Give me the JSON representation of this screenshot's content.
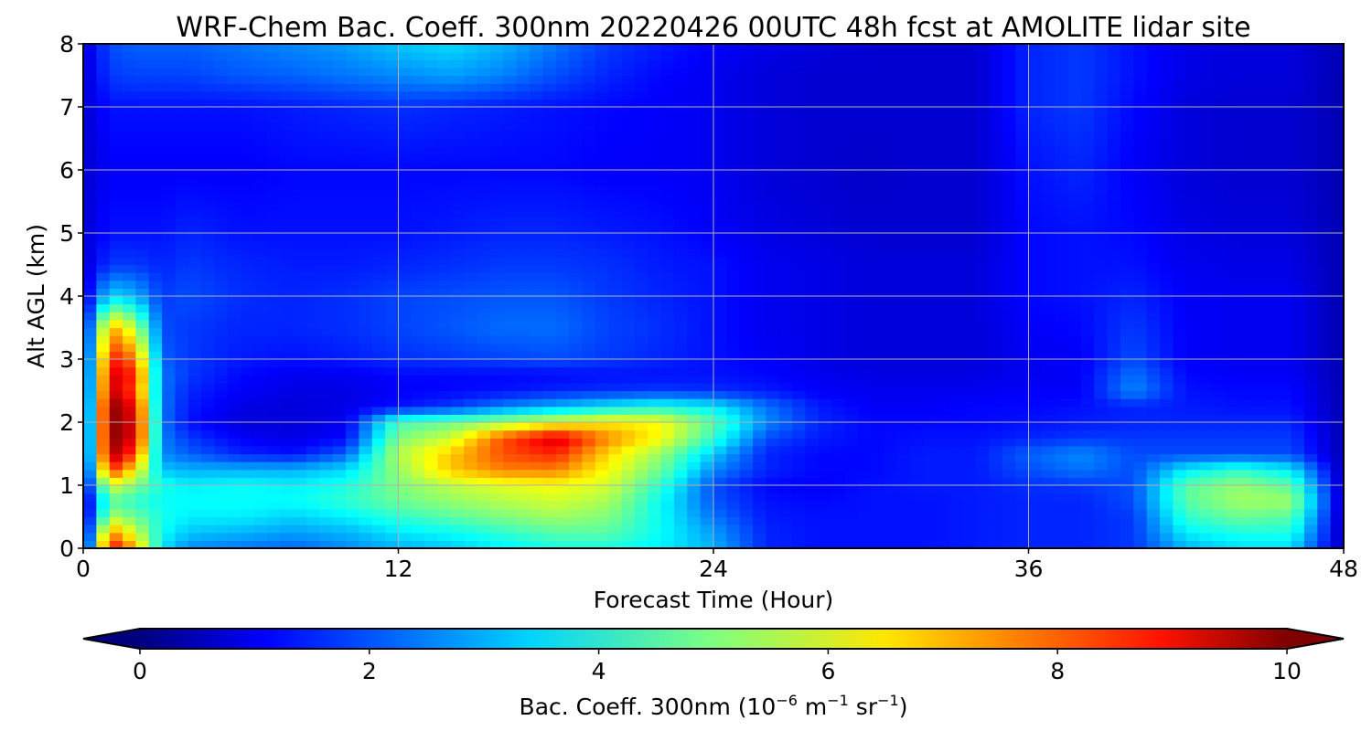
{
  "chart_data": {
    "type": "heatmap",
    "title": "WRF-Chem Bac. Coeff. 300nm  20220426 00UTC 48h fcst at AMOLITE lidar site",
    "xlabel": "Forecast Time (Hour)",
    "ylabel": "Alt AGL (km)",
    "xlim": [
      0,
      48
    ],
    "ylim": [
      0,
      8
    ],
    "x_ticks": [
      "0",
      "12",
      "24",
      "36",
      "48"
    ],
    "y_ticks": [
      "0",
      "1",
      "2",
      "3",
      "4",
      "5",
      "6",
      "7",
      "8"
    ],
    "grid": true,
    "colormap": "jet",
    "colorbar": {
      "orientation": "horizontal",
      "placement": "bottom",
      "extend": "both",
      "range": [
        0,
        10
      ],
      "ticks": [
        "0",
        "2",
        "4",
        "6",
        "8",
        "10"
      ],
      "label_main": "Bac. Coeff. 300nm  (10",
      "label_exp1": "−6",
      "label_mid": " m",
      "label_exp2": "−1",
      "label_mid2": " sr",
      "label_exp3": "−1",
      "label_end": ")"
    },
    "x_hours": [
      0,
      1,
      2,
      3,
      4,
      6,
      8,
      10,
      12,
      14,
      16,
      18,
      20,
      22,
      24,
      26,
      28,
      30,
      32,
      34,
      36,
      38,
      40,
      42,
      44,
      46,
      48
    ],
    "z_km": [
      0,
      0.25,
      0.5,
      0.75,
      1,
      1.25,
      1.5,
      1.75,
      2,
      2.25,
      2.5,
      2.75,
      3,
      3.5,
      4,
      4.5,
      5,
      6,
      7,
      7.5,
      8
    ],
    "values": [
      [
        0.5,
        9.0,
        7.0,
        3.5,
        2.6,
        2.4,
        2.2,
        2.6,
        3.0,
        3.2,
        3.6,
        4.0,
        4.0,
        3.6,
        3.0,
        1.6,
        1.4,
        1.4,
        1.4,
        1.5,
        1.6,
        1.6,
        1.8,
        3.0,
        3.4,
        3.4,
        0.5
      ],
      [
        0.5,
        7.5,
        5.8,
        3.8,
        3.2,
        3.0,
        2.8,
        3.0,
        3.5,
        3.8,
        4.2,
        4.6,
        4.6,
        3.8,
        2.8,
        1.6,
        1.4,
        1.4,
        1.4,
        1.5,
        1.6,
        1.6,
        1.8,
        3.6,
        4.0,
        4.0,
        0.5
      ],
      [
        0.5,
        5.5,
        4.8,
        4.0,
        3.6,
        3.6,
        3.3,
        3.6,
        4.2,
        4.6,
        5.0,
        5.3,
        5.0,
        3.8,
        2.4,
        1.5,
        1.4,
        1.4,
        1.4,
        1.5,
        1.6,
        1.6,
        1.8,
        4.2,
        4.8,
        4.6,
        0.5
      ],
      [
        0.5,
        4.6,
        4.2,
        3.8,
        3.8,
        3.8,
        3.8,
        4.2,
        4.8,
        5.2,
        5.5,
        5.8,
        5.4,
        3.8,
        2.1,
        1.4,
        1.3,
        1.4,
        1.4,
        1.5,
        1.6,
        1.6,
        2.0,
        4.6,
        5.3,
        5.3,
        0.5
      ],
      [
        0.8,
        6.0,
        5.0,
        4.0,
        3.6,
        3.8,
        3.6,
        4.0,
        5.0,
        5.6,
        6.0,
        6.2,
        5.8,
        4.2,
        2.0,
        1.3,
        1.2,
        1.4,
        1.5,
        1.5,
        1.7,
        1.8,
        2.0,
        4.6,
        5.2,
        4.6,
        0.5
      ],
      [
        0.8,
        8.4,
        6.4,
        3.2,
        3.0,
        3.0,
        3.0,
        3.4,
        5.2,
        6.8,
        7.5,
        7.5,
        6.2,
        4.8,
        2.6,
        1.6,
        1.3,
        1.3,
        1.5,
        1.5,
        2.0,
        2.4,
        2.0,
        3.6,
        4.2,
        3.6,
        0.5
      ],
      [
        0.8,
        9.8,
        8.0,
        2.6,
        2.2,
        1.6,
        1.4,
        2.2,
        5.5,
        6.8,
        8.0,
        8.4,
        6.6,
        5.2,
        3.2,
        1.6,
        1.3,
        1.3,
        1.5,
        1.5,
        2.2,
        2.6,
        2.0,
        2.0,
        2.0,
        2.0,
        0.5
      ],
      [
        0.8,
        10.0,
        9.0,
        2.5,
        1.8,
        1.2,
        1.0,
        1.3,
        5.0,
        5.8,
        8.0,
        9.2,
        7.4,
        6.2,
        4.2,
        2.0,
        1.5,
        1.3,
        1.4,
        1.4,
        1.6,
        1.8,
        1.8,
        1.8,
        1.8,
        1.8,
        0.5
      ],
      [
        0.8,
        10.0,
        9.0,
        2.4,
        1.4,
        0.9,
        0.9,
        1.1,
        4.4,
        4.8,
        5.3,
        6.0,
        6.4,
        6.2,
        4.6,
        2.6,
        1.6,
        1.3,
        1.3,
        1.3,
        1.4,
        1.5,
        1.6,
        1.6,
        1.6,
        1.6,
        0.5
      ],
      [
        0.8,
        10.0,
        8.8,
        2.4,
        1.5,
        1.0,
        0.9,
        1.0,
        1.4,
        1.8,
        2.5,
        3.0,
        3.6,
        4.0,
        3.6,
        2.4,
        1.5,
        1.2,
        1.2,
        1.3,
        1.3,
        1.4,
        1.6,
        1.5,
        1.4,
        1.4,
        0.5
      ],
      [
        0.8,
        9.4,
        8.0,
        2.4,
        1.6,
        1.2,
        1.0,
        1.0,
        1.2,
        1.3,
        1.4,
        1.6,
        1.7,
        1.8,
        1.7,
        1.5,
        1.2,
        1.1,
        1.1,
        1.1,
        1.2,
        1.2,
        2.6,
        1.4,
        1.3,
        1.3,
        0.5
      ],
      [
        0.8,
        9.2,
        8.4,
        2.4,
        1.8,
        1.3,
        1.1,
        1.1,
        1.3,
        1.3,
        1.3,
        1.3,
        1.4,
        1.4,
        1.4,
        1.3,
        1.1,
        1.0,
        1.0,
        1.0,
        1.1,
        1.2,
        2.4,
        1.3,
        1.2,
        1.2,
        0.5
      ],
      [
        0.8,
        8.6,
        7.6,
        2.2,
        1.8,
        1.5,
        1.4,
        1.5,
        1.7,
        1.8,
        1.9,
        2.0,
        1.8,
        1.6,
        1.4,
        1.2,
        1.0,
        0.9,
        0.9,
        0.9,
        1.1,
        1.2,
        2.0,
        1.2,
        1.1,
        1.1,
        0.5
      ],
      [
        0.8,
        7.2,
        5.6,
        2.0,
        1.8,
        1.6,
        1.6,
        1.7,
        1.9,
        2.1,
        2.3,
        2.3,
        1.9,
        1.7,
        1.4,
        1.1,
        1.0,
        0.9,
        0.9,
        0.9,
        1.2,
        1.3,
        1.8,
        1.2,
        1.1,
        1.1,
        0.5
      ],
      [
        0.8,
        3.4,
        3.0,
        1.8,
        2.0,
        1.7,
        1.6,
        1.7,
        1.9,
        2.0,
        2.1,
        2.1,
        1.8,
        1.6,
        1.4,
        1.1,
        1.0,
        0.9,
        0.9,
        0.9,
        1.3,
        1.4,
        1.6,
        1.2,
        1.1,
        1.1,
        0.5
      ],
      [
        0.8,
        1.8,
        1.8,
        1.6,
        1.8,
        1.6,
        1.5,
        1.5,
        1.6,
        1.7,
        1.8,
        1.8,
        1.7,
        1.5,
        1.4,
        1.1,
        1.0,
        0.9,
        0.9,
        0.9,
        1.3,
        1.4,
        1.4,
        1.1,
        1.0,
        1.0,
        0.5
      ],
      [
        0.8,
        1.4,
        1.4,
        1.4,
        1.6,
        1.4,
        1.4,
        1.4,
        1.4,
        1.5,
        1.6,
        1.6,
        1.5,
        1.4,
        1.2,
        1.0,
        0.9,
        0.8,
        0.8,
        0.8,
        1.3,
        1.4,
        1.3,
        1.0,
        0.9,
        0.9,
        0.5
      ],
      [
        0.8,
        1.2,
        1.2,
        1.2,
        1.2,
        1.2,
        1.3,
        1.3,
        1.3,
        1.3,
        1.3,
        1.3,
        1.2,
        1.2,
        1.1,
        0.9,
        0.8,
        0.7,
        0.8,
        0.8,
        1.4,
        1.6,
        1.2,
        0.9,
        0.8,
        0.8,
        0.5
      ],
      [
        0.8,
        1.4,
        1.4,
        1.4,
        1.4,
        1.4,
        1.5,
        1.6,
        1.7,
        1.6,
        1.5,
        1.4,
        1.3,
        1.2,
        1.1,
        0.9,
        0.8,
        0.8,
        0.8,
        0.8,
        1.6,
        1.8,
        1.3,
        0.9,
        0.8,
        0.8,
        0.5
      ],
      [
        0.8,
        1.8,
        1.9,
        1.9,
        1.9,
        2.1,
        2.2,
        2.4,
        2.6,
        2.8,
        2.5,
        2.0,
        1.6,
        1.3,
        1.1,
        0.9,
        0.8,
        0.8,
        0.8,
        0.8,
        1.6,
        1.8,
        1.4,
        1.0,
        0.9,
        0.9,
        0.5
      ],
      [
        0.8,
        2.0,
        2.2,
        2.2,
        2.2,
        2.4,
        2.6,
        2.8,
        3.2,
        3.4,
        3.0,
        2.4,
        1.8,
        1.5,
        1.2,
        1.0,
        0.9,
        0.8,
        0.8,
        0.8,
        1.6,
        1.8,
        1.4,
        1.0,
        0.9,
        0.9,
        0.5
      ]
    ]
  }
}
